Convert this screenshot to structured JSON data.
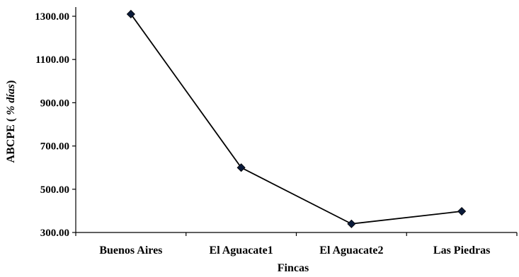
{
  "chart_data": {
    "type": "line",
    "title": "",
    "xlabel": "Fincas",
    "ylabel_main": "ABCPE ( ",
    "ylabel_italic": "% días",
    "ylabel_end": ")",
    "categories": [
      "Buenos Aires",
      "El Aguacate1",
      "El Aguacate2",
      "Las Piedras"
    ],
    "series": [
      {
        "values": [
          1310,
          600,
          340,
          398
        ]
      }
    ],
    "ylim": [
      300,
      1300
    ],
    "yticks": [
      300,
      500,
      700,
      900,
      1100,
      1300
    ],
    "ytick_labels": [
      "300.00",
      "500.00",
      "700.00",
      "900.00",
      "1100.00",
      "1300.00"
    ],
    "grid": false,
    "legend": "none",
    "line_color": "#000000",
    "marker_color": "#0a1a3a",
    "marker_shape": "diamond"
  }
}
